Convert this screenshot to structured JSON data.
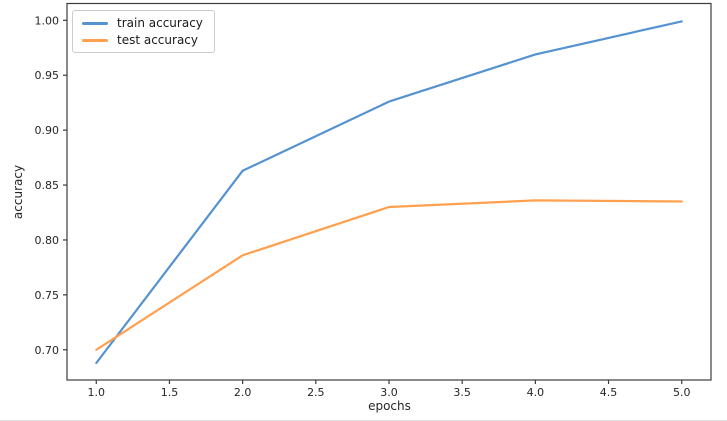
{
  "figure": {
    "background": "#ffffff"
  },
  "chart_data": {
    "type": "line",
    "title": "",
    "xlabel": "epochs",
    "ylabel": "accuracy",
    "x": [
      1,
      2,
      3,
      4,
      5
    ],
    "series": [
      {
        "name": "train accuracy",
        "color": "#5593d0",
        "values": [
          0.688,
          0.863,
          0.926,
          0.969,
          0.999
        ]
      },
      {
        "name": "test accuracy",
        "color": "#ffa04e",
        "values": [
          0.7,
          0.786,
          0.83,
          0.836,
          0.835
        ]
      }
    ],
    "xlim": [
      0.8,
      5.2
    ],
    "ylim": [
      0.6725,
      1.0153
    ],
    "xticks": [
      1.0,
      1.5,
      2.0,
      2.5,
      3.0,
      3.5,
      4.0,
      4.5,
      5.0
    ],
    "xtick_labels": [
      "1.0",
      "1.5",
      "2.0",
      "2.5",
      "3.0",
      "3.5",
      "4.0",
      "4.5",
      "5.0"
    ],
    "yticks": [
      0.7,
      0.75,
      0.8,
      0.85,
      0.9,
      0.95,
      1.0
    ],
    "ytick_labels": [
      "0.70",
      "0.75",
      "0.80",
      "0.85",
      "0.90",
      "0.95",
      "1.00"
    ],
    "grid": false,
    "legend_position": "upper left",
    "spine_color": "#3c3c3c",
    "tick_label_color": "#262626"
  }
}
